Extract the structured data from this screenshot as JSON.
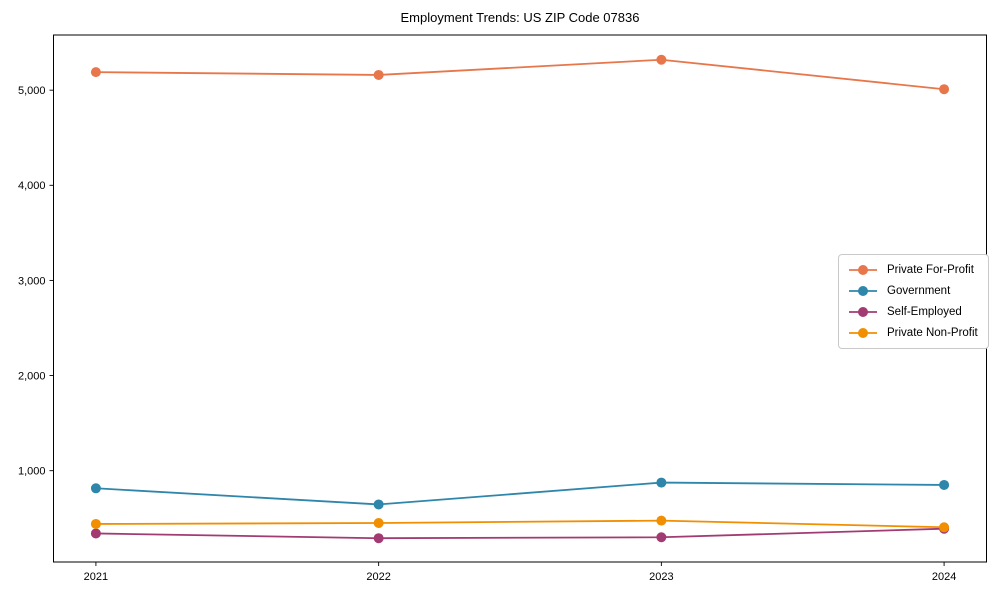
{
  "title": "Employment Trends: US ZIP Code 07836",
  "chart_data": {
    "type": "line",
    "title": "Employment Trends: US ZIP Code 07836",
    "xlabel": "",
    "ylabel": "",
    "x": [
      2021,
      2022,
      2023,
      2024
    ],
    "xtick_labels": [
      "2021",
      "2022",
      "2023",
      "2024"
    ],
    "yticks": [
      1000,
      2000,
      3000,
      4000,
      5000
    ],
    "ytick_labels": [
      "1,000",
      "2,000",
      "3,000",
      "4,000",
      "5,000"
    ],
    "ylim": [
      40,
      5580
    ],
    "grid": false,
    "legend_position": "center-right",
    "marker": "circle",
    "series": [
      {
        "name": "Private For-Profit",
        "color": "#E8764B",
        "values": [
          5190,
          5160,
          5320,
          5010
        ]
      },
      {
        "name": "Government",
        "color": "#2E86AB",
        "values": [
          815,
          645,
          875,
          850
        ]
      },
      {
        "name": "Self-Employed",
        "color": "#A23B72",
        "values": [
          340,
          290,
          300,
          390
        ]
      },
      {
        "name": "Private Non-Profit",
        "color": "#F18F01",
        "values": [
          440,
          450,
          475,
          405
        ]
      }
    ]
  }
}
